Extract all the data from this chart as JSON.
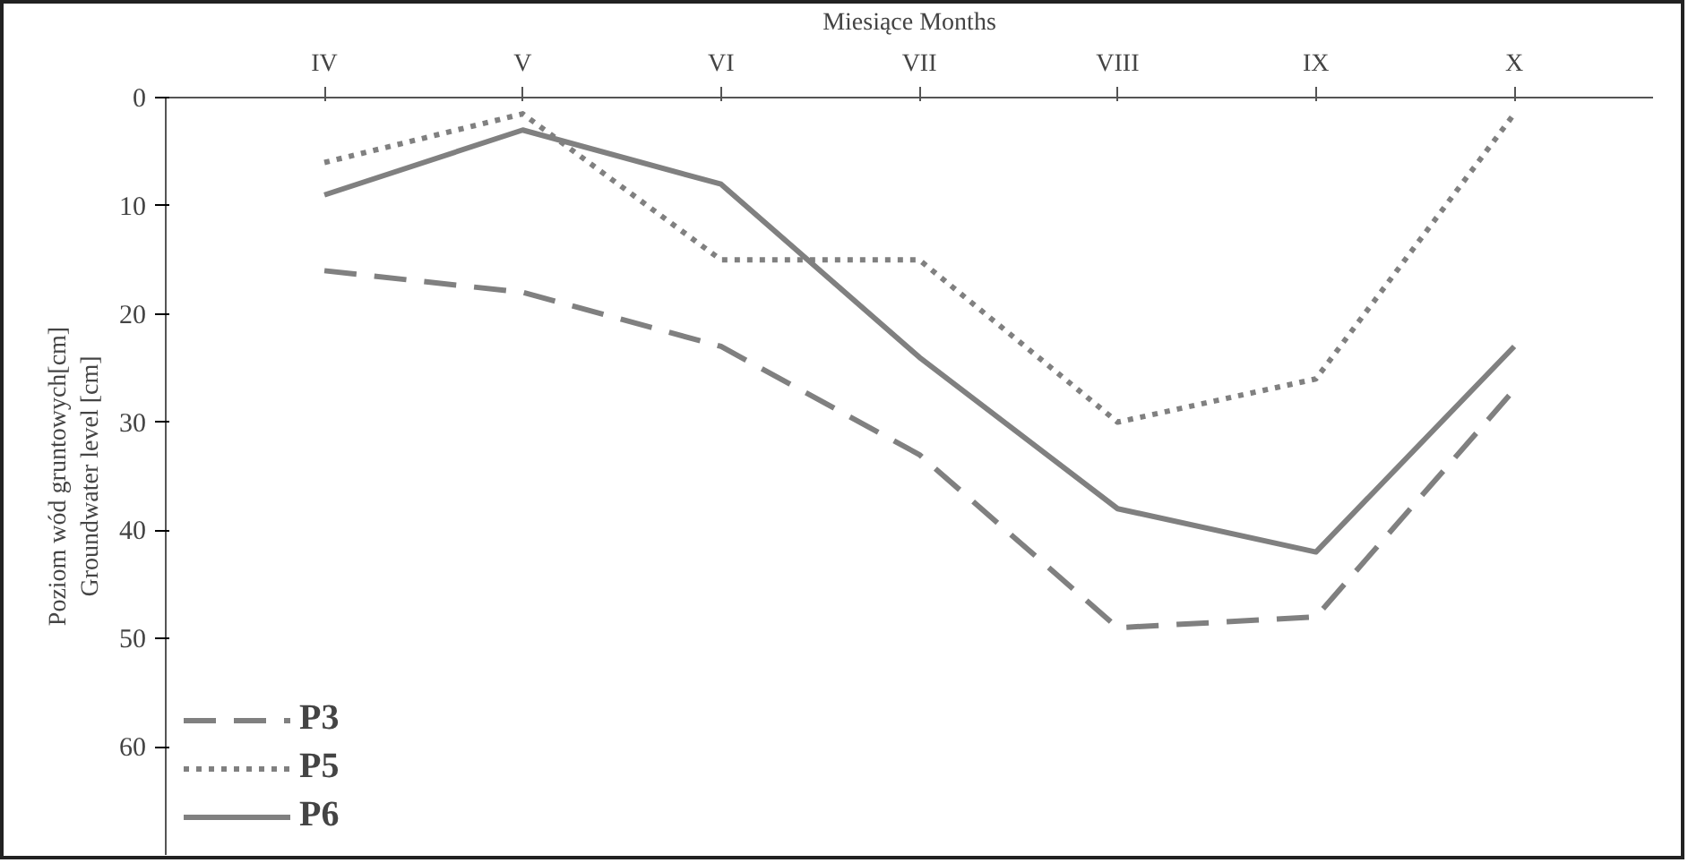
{
  "chart_data": {
    "type": "line",
    "xlabel": "Miesiące Months",
    "ylabel": "Poziom wód gruntowych[cm]\nGroundwater level [cm]",
    "categories": [
      "IV",
      "V",
      "VI",
      "VII",
      "VIII",
      "IX",
      "X"
    ],
    "ylim": [
      70,
      0
    ],
    "yticks": [
      0,
      10,
      20,
      30,
      40,
      50,
      60
    ],
    "grid": false,
    "legend": "bottom left",
    "marker": "none",
    "series": [
      {
        "name": "P3",
        "color": "#808080",
        "line_style": "dashed",
        "values": [
          16,
          18,
          23,
          33,
          49,
          48,
          27
        ]
      },
      {
        "name": "P5",
        "color": "#808080",
        "line_style": "dotted",
        "values": [
          6,
          1.5,
          15,
          15,
          30,
          26,
          1.5
        ]
      },
      {
        "name": "P6",
        "color": "#808080",
        "line_style": "solid",
        "values": [
          9,
          3,
          8,
          24,
          38,
          42,
          23
        ]
      }
    ]
  }
}
